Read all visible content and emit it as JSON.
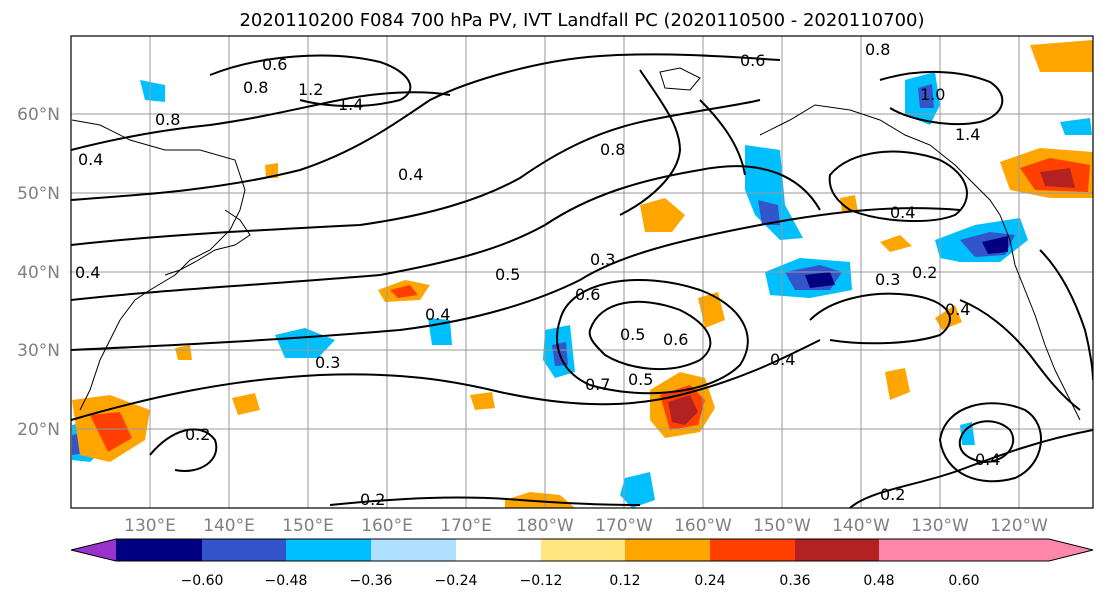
{
  "title": "2020110200 F084 700 hPa PV, IVT Landfall PC (2020110500 - 2020110700)",
  "latitude_labels": [
    "60°N",
    "50°N",
    "40°N",
    "30°N",
    "20°N"
  ],
  "longitude_labels": [
    "130°E",
    "140°E",
    "150°E",
    "160°E",
    "170°E",
    "180°W",
    "170°W",
    "160°W",
    "150°W",
    "140°W",
    "130°W",
    "120°W"
  ],
  "contour_labels": [
    "0.6",
    "0.8",
    "1.2",
    "1.4",
    "0.4",
    "0.8",
    "0.6",
    "0.8",
    "1.0",
    "0.8",
    "1.4",
    "0.4",
    "0.5",
    "0.3",
    "0.6",
    "0.5",
    "0.6",
    "0.7",
    "0.5",
    "0.4",
    "0.3",
    "0.3",
    "0.2",
    "0.4",
    "0.4",
    "0.2",
    "0.2",
    "0.2",
    "0.4",
    "0.4",
    "0.4"
  ],
  "colorbar": {
    "colors": [
      "#9933cc",
      "#000080",
      "#3355cc",
      "#00bfff",
      "#b0e0ff",
      "#ffffff",
      "#ffe680",
      "#ffa500",
      "#ff4000",
      "#b22222",
      "#ff88aa"
    ],
    "tick_labels": [
      "−0.60",
      "−0.48",
      "−0.36",
      "−0.24",
      "−0.12",
      "0.12",
      "0.24",
      "0.36",
      "0.48",
      "0.60"
    ]
  }
}
